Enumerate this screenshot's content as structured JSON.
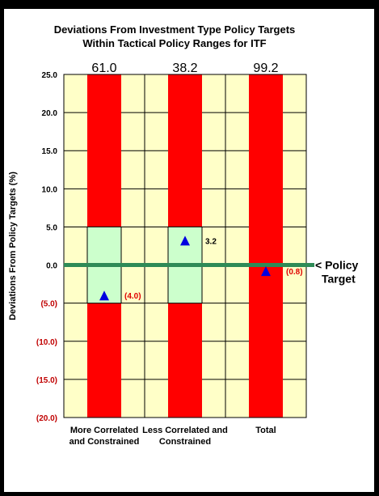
{
  "chart_data": {
    "type": "bar",
    "title": "Deviations From Investment Type Policy Targets",
    "subtitle": "Within Tactical Policy Ranges for  ITF",
    "ylabel": "Deviations From Policy Targets (%)",
    "xlabel": "",
    "ylim": [
      -20,
      25
    ],
    "yticks": [
      25,
      20,
      15,
      10,
      5,
      0,
      -5,
      -10,
      -15,
      -20
    ],
    "ytick_labels": [
      "25.0",
      "20.0",
      "15.0",
      "10.0",
      "5.0",
      "0.0",
      "(5.0)",
      "(10.0)",
      "(15.0)",
      "(20.0)"
    ],
    "grid": true,
    "categories": [
      [
        "More Correlated",
        "and Constrained"
      ],
      [
        "Less Correlated and",
        "Constrained"
      ],
      [
        "Total"
      ]
    ],
    "top_labels": [
      "61.0",
      "38.2",
      "99.2"
    ],
    "policy_range": [
      {
        "low": -5,
        "high": 5
      },
      {
        "low": -5,
        "high": 5
      },
      {
        "low": 0,
        "high": 0
      }
    ],
    "deviations": [
      -4.0,
      3.2,
      -0.8
    ],
    "deviation_labels": [
      "(4.0)",
      "3.2",
      "(0.8)"
    ],
    "deviation_label_colors": [
      "#e00000",
      "#000000",
      "#e00000"
    ],
    "policy_target_value": 0,
    "policy_target_label": [
      "< Policy",
      "Target"
    ],
    "colors": {
      "plot_bg": "#ffffc8",
      "bar": "#ff0000",
      "range": "#ccffcc",
      "target_line": "#2e8b57",
      "marker": "#0000e0",
      "negative_tick": "#c00000",
      "positive_tick": "#000000"
    }
  }
}
